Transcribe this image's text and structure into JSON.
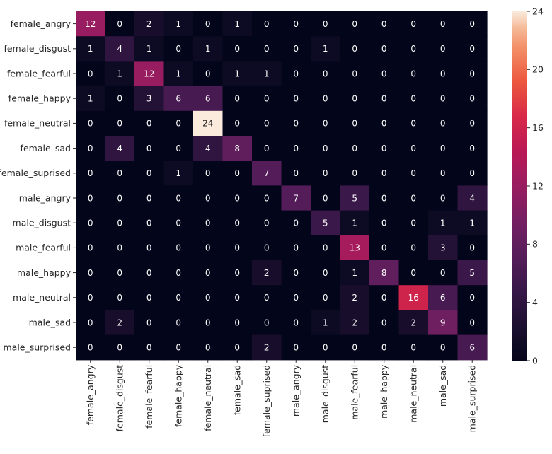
{
  "chart_data": {
    "type": "heatmap",
    "title": "",
    "xlabel": "",
    "ylabel": "",
    "row_labels": [
      "female_angry",
      "female_disgust",
      "female_fearful",
      "female_happy",
      "female_neutral",
      "female_sad",
      "female_suprised",
      "male_angry",
      "male_disgust",
      "male_fearful",
      "male_happy",
      "male_neutral",
      "male_sad",
      "male_surprised"
    ],
    "col_labels": [
      "female_angry",
      "female_disgust",
      "female_fearful",
      "female_happy",
      "female_neutral",
      "female_sad",
      "female_suprised",
      "male_angry",
      "male_disgust",
      "male_fearful",
      "male_happy",
      "male_neutral",
      "male_sad",
      "male_surprised"
    ],
    "values": [
      [
        12,
        0,
        2,
        1,
        0,
        1,
        0,
        0,
        0,
        0,
        0,
        0,
        0,
        0
      ],
      [
        1,
        4,
        1,
        0,
        1,
        0,
        0,
        0,
        1,
        0,
        0,
        0,
        0,
        0
      ],
      [
        0,
        1,
        12,
        1,
        0,
        1,
        1,
        0,
        0,
        0,
        0,
        0,
        0,
        0
      ],
      [
        1,
        0,
        3,
        6,
        6,
        0,
        0,
        0,
        0,
        0,
        0,
        0,
        0,
        0
      ],
      [
        0,
        0,
        0,
        0,
        24,
        0,
        0,
        0,
        0,
        0,
        0,
        0,
        0,
        0
      ],
      [
        0,
        4,
        0,
        0,
        4,
        8,
        0,
        0,
        0,
        0,
        0,
        0,
        0,
        0
      ],
      [
        0,
        0,
        0,
        1,
        0,
        0,
        7,
        0,
        0,
        0,
        0,
        0,
        0,
        0
      ],
      [
        0,
        0,
        0,
        0,
        0,
        0,
        0,
        7,
        0,
        5,
        0,
        0,
        0,
        4
      ],
      [
        0,
        0,
        0,
        0,
        0,
        0,
        0,
        0,
        5,
        1,
        0,
        0,
        1,
        1
      ],
      [
        0,
        0,
        0,
        0,
        0,
        0,
        0,
        0,
        0,
        13,
        0,
        0,
        3,
        0
      ],
      [
        0,
        0,
        0,
        0,
        0,
        0,
        2,
        0,
        0,
        1,
        8,
        0,
        0,
        5
      ],
      [
        0,
        0,
        0,
        0,
        0,
        0,
        0,
        0,
        0,
        2,
        0,
        16,
        6,
        0
      ],
      [
        0,
        2,
        0,
        0,
        0,
        0,
        0,
        0,
        1,
        2,
        0,
        2,
        9,
        0
      ],
      [
        0,
        0,
        0,
        0,
        0,
        0,
        2,
        0,
        0,
        0,
        0,
        0,
        0,
        6
      ]
    ],
    "vmin": 0,
    "vmax": 24,
    "colormap": "rocket",
    "colorbar_ticks": [
      "0",
      "4",
      "8",
      "12",
      "16",
      "20",
      "24"
    ],
    "annotated": true,
    "grid": false,
    "legend": "colorbar-right"
  }
}
